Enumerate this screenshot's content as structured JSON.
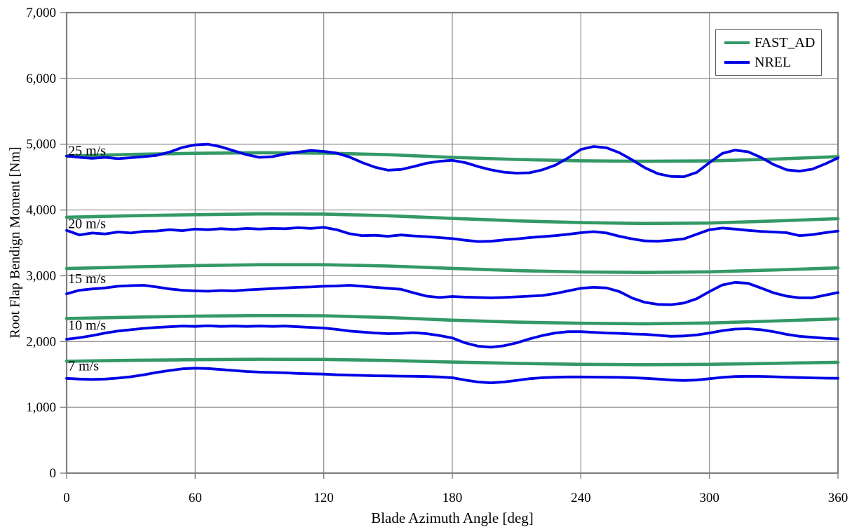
{
  "chart_data": {
    "type": "line",
    "title": "",
    "xlabel": "Blade Azimuth Angle [deg]",
    "ylabel": "Root Flap Bendign Moment [Nm]",
    "xlim": [
      0,
      360
    ],
    "ylim": [
      0,
      7000
    ],
    "xticks": [
      0,
      60,
      120,
      180,
      240,
      300,
      360
    ],
    "yticks": [
      0,
      1000,
      2000,
      3000,
      4000,
      5000,
      6000,
      7000
    ],
    "grid": true,
    "colors": {
      "FAST_AD": "#339966",
      "NREL": "#0000E6",
      "grid": "#8C8C8C",
      "frame": "#7F7F7F",
      "text": "#000000"
    },
    "legend": {
      "position": "top-right",
      "entries": [
        {
          "label": "FAST_AD",
          "color": "#339966"
        },
        {
          "label": "NREL",
          "color": "#0000E6"
        }
      ]
    },
    "annotations": [
      {
        "text": "25 m/s",
        "x": 0.7,
        "y": 4905
      },
      {
        "text": "20 m/s",
        "x": 0.7,
        "y": 3800
      },
      {
        "text": "15 m/s",
        "x": 0.7,
        "y": 2960
      },
      {
        "text": "10 m/s",
        "x": 0.7,
        "y": 2255
      },
      {
        "text": "7 m/s",
        "x": 0.7,
        "y": 1635
      }
    ],
    "series": [
      {
        "name": "FAST_AD 25 m/s",
        "legend": "FAST_AD",
        "wind_speed": "25 m/s",
        "x": [
          0,
          30,
          60,
          90,
          120,
          150,
          180,
          210,
          240,
          270,
          300,
          330,
          360
        ],
        "y": [
          4820,
          4845,
          4862,
          4870,
          4865,
          4840,
          4800,
          4768,
          4748,
          4740,
          4745,
          4772,
          4812
        ]
      },
      {
        "name": "FAST_AD 20 m/s",
        "legend": "FAST_AD",
        "wind_speed": "20 m/s",
        "x": [
          0,
          30,
          60,
          90,
          120,
          150,
          180,
          210,
          240,
          270,
          300,
          330,
          360
        ],
        "y": [
          3890,
          3912,
          3928,
          3940,
          3938,
          3912,
          3872,
          3835,
          3808,
          3795,
          3802,
          3832,
          3868
        ]
      },
      {
        "name": "FAST_AD 15 m/s",
        "legend": "FAST_AD",
        "wind_speed": "15 m/s",
        "x": [
          0,
          30,
          60,
          90,
          120,
          150,
          180,
          210,
          240,
          270,
          300,
          330,
          360
        ],
        "y": [
          3110,
          3135,
          3155,
          3168,
          3168,
          3148,
          3112,
          3078,
          3058,
          3050,
          3060,
          3088,
          3120
        ]
      },
      {
        "name": "FAST_AD 10 m/s",
        "legend": "FAST_AD",
        "wind_speed": "10 m/s",
        "x": [
          0,
          30,
          60,
          90,
          120,
          150,
          180,
          210,
          240,
          270,
          300,
          330,
          360
        ],
        "y": [
          2350,
          2370,
          2386,
          2395,
          2392,
          2365,
          2325,
          2295,
          2278,
          2270,
          2282,
          2312,
          2345
        ]
      },
      {
        "name": "FAST_AD 7 m/s",
        "legend": "FAST_AD",
        "wind_speed": "7 m/s",
        "x": [
          0,
          30,
          60,
          90,
          120,
          150,
          180,
          210,
          240,
          270,
          300,
          330,
          360
        ],
        "y": [
          1700,
          1714,
          1724,
          1730,
          1728,
          1712,
          1688,
          1668,
          1654,
          1648,
          1654,
          1668,
          1685
        ]
      },
      {
        "name": "NREL 25 m/s",
        "legend": "NREL",
        "wind_speed": "25 m/s",
        "x": [
          0,
          6,
          12,
          18,
          24,
          30,
          36,
          42,
          48,
          54,
          60,
          66,
          72,
          78,
          84,
          90,
          96,
          102,
          108,
          114,
          120,
          126,
          132,
          138,
          144,
          150,
          156,
          162,
          168,
          174,
          180,
          186,
          192,
          198,
          204,
          210,
          216,
          222,
          228,
          234,
          240,
          246,
          252,
          258,
          264,
          270,
          276,
          282,
          288,
          294,
          300,
          306,
          312,
          318,
          324,
          330,
          336,
          342,
          348,
          354,
          360
        ],
        "y": [
          4820,
          4800,
          4785,
          4800,
          4780,
          4795,
          4810,
          4830,
          4880,
          4950,
          4990,
          5000,
          4960,
          4900,
          4840,
          4800,
          4810,
          4850,
          4880,
          4905,
          4890,
          4865,
          4805,
          4720,
          4650,
          4605,
          4615,
          4660,
          4710,
          4740,
          4755,
          4720,
          4660,
          4610,
          4575,
          4560,
          4565,
          4610,
          4680,
          4790,
          4920,
          4965,
          4945,
          4870,
          4760,
          4640,
          4550,
          4510,
          4505,
          4570,
          4720,
          4860,
          4910,
          4885,
          4800,
          4690,
          4610,
          4590,
          4620,
          4700,
          4790
        ]
      },
      {
        "name": "NREL 20 m/s",
        "legend": "NREL",
        "wind_speed": "20 m/s",
        "x": [
          0,
          6,
          12,
          18,
          24,
          30,
          36,
          42,
          48,
          54,
          60,
          66,
          72,
          78,
          84,
          90,
          96,
          102,
          108,
          114,
          120,
          126,
          132,
          138,
          144,
          150,
          156,
          162,
          168,
          174,
          180,
          186,
          192,
          198,
          204,
          210,
          216,
          222,
          228,
          234,
          240,
          246,
          252,
          258,
          264,
          270,
          276,
          282,
          288,
          294,
          300,
          306,
          312,
          318,
          324,
          330,
          336,
          342,
          348,
          354,
          360
        ],
        "y": [
          3690,
          3620,
          3650,
          3635,
          3665,
          3650,
          3675,
          3680,
          3700,
          3685,
          3710,
          3700,
          3715,
          3705,
          3720,
          3710,
          3720,
          3715,
          3730,
          3720,
          3735,
          3700,
          3640,
          3610,
          3615,
          3600,
          3620,
          3605,
          3595,
          3580,
          3565,
          3540,
          3520,
          3525,
          3545,
          3560,
          3580,
          3595,
          3610,
          3630,
          3655,
          3670,
          3650,
          3600,
          3560,
          3530,
          3525,
          3540,
          3560,
          3630,
          3700,
          3725,
          3710,
          3690,
          3675,
          3665,
          3655,
          3610,
          3625,
          3655,
          3680
        ]
      },
      {
        "name": "NREL 15 m/s",
        "legend": "NREL",
        "wind_speed": "15 m/s",
        "x": [
          0,
          6,
          12,
          18,
          24,
          30,
          36,
          42,
          48,
          54,
          60,
          66,
          72,
          78,
          84,
          90,
          96,
          102,
          108,
          114,
          120,
          126,
          132,
          138,
          144,
          150,
          156,
          162,
          168,
          174,
          180,
          186,
          192,
          198,
          204,
          210,
          216,
          222,
          228,
          234,
          240,
          246,
          252,
          258,
          264,
          270,
          276,
          282,
          288,
          294,
          300,
          306,
          312,
          318,
          324,
          330,
          336,
          342,
          348,
          354,
          360
        ],
        "y": [
          2725,
          2780,
          2800,
          2815,
          2840,
          2850,
          2855,
          2830,
          2800,
          2780,
          2770,
          2765,
          2775,
          2770,
          2785,
          2795,
          2805,
          2815,
          2825,
          2830,
          2840,
          2845,
          2855,
          2840,
          2825,
          2810,
          2795,
          2740,
          2690,
          2670,
          2685,
          2675,
          2670,
          2665,
          2670,
          2680,
          2690,
          2700,
          2730,
          2770,
          2810,
          2825,
          2815,
          2760,
          2660,
          2595,
          2565,
          2560,
          2585,
          2650,
          2760,
          2860,
          2900,
          2885,
          2815,
          2740,
          2690,
          2665,
          2665,
          2705,
          2745
        ]
      },
      {
        "name": "NREL 10 m/s",
        "legend": "NREL",
        "wind_speed": "10 m/s",
        "x": [
          0,
          6,
          12,
          18,
          24,
          30,
          36,
          42,
          48,
          54,
          60,
          66,
          72,
          78,
          84,
          90,
          96,
          102,
          108,
          114,
          120,
          126,
          132,
          138,
          144,
          150,
          156,
          162,
          168,
          174,
          180,
          186,
          192,
          198,
          204,
          210,
          216,
          222,
          228,
          234,
          240,
          246,
          252,
          258,
          264,
          270,
          276,
          282,
          288,
          294,
          300,
          306,
          312,
          318,
          324,
          330,
          336,
          342,
          348,
          354,
          360
        ],
        "y": [
          2035,
          2060,
          2090,
          2130,
          2160,
          2180,
          2200,
          2215,
          2225,
          2235,
          2230,
          2240,
          2230,
          2235,
          2230,
          2235,
          2230,
          2235,
          2225,
          2215,
          2205,
          2185,
          2160,
          2145,
          2130,
          2120,
          2125,
          2135,
          2120,
          2090,
          2055,
          1980,
          1930,
          1915,
          1935,
          1980,
          2040,
          2090,
          2130,
          2150,
          2150,
          2140,
          2130,
          2125,
          2115,
          2110,
          2095,
          2080,
          2085,
          2100,
          2130,
          2165,
          2190,
          2195,
          2180,
          2150,
          2110,
          2080,
          2065,
          2050,
          2040
        ]
      },
      {
        "name": "NREL 7 m/s",
        "legend": "NREL",
        "wind_speed": "7 m/s",
        "x": [
          0,
          6,
          12,
          18,
          24,
          30,
          36,
          42,
          48,
          54,
          60,
          66,
          72,
          78,
          84,
          90,
          96,
          102,
          108,
          114,
          120,
          126,
          132,
          138,
          144,
          150,
          156,
          162,
          168,
          174,
          180,
          186,
          192,
          198,
          204,
          210,
          216,
          222,
          228,
          234,
          240,
          246,
          252,
          258,
          264,
          270,
          276,
          282,
          288,
          294,
          300,
          306,
          312,
          318,
          324,
          330,
          336,
          342,
          348,
          354,
          360
        ],
        "y": [
          1440,
          1430,
          1425,
          1430,
          1445,
          1465,
          1495,
          1530,
          1560,
          1585,
          1595,
          1590,
          1575,
          1560,
          1545,
          1535,
          1530,
          1525,
          1515,
          1510,
          1505,
          1495,
          1490,
          1485,
          1480,
          1478,
          1475,
          1472,
          1468,
          1462,
          1450,
          1415,
          1385,
          1372,
          1385,
          1410,
          1435,
          1450,
          1458,
          1462,
          1462,
          1460,
          1458,
          1455,
          1450,
          1442,
          1430,
          1415,
          1408,
          1415,
          1435,
          1455,
          1468,
          1472,
          1470,
          1465,
          1458,
          1452,
          1448,
          1444,
          1442
        ]
      }
    ]
  }
}
